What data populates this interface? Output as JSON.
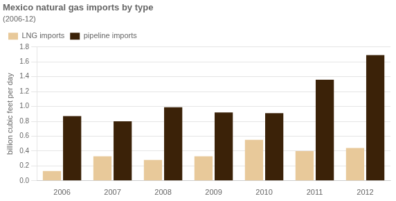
{
  "chart_data": {
    "type": "bar",
    "title": "Mexico natural gas imports by type",
    "subtitle": "(2006-12)",
    "ylabel": "billion cubic feet per day",
    "categories": [
      "2006",
      "2007",
      "2008",
      "2009",
      "2010",
      "2011",
      "2012"
    ],
    "series": [
      {
        "name": "LNG imports",
        "color": "#e8c99a",
        "values": [
          0.13,
          0.33,
          0.28,
          0.33,
          0.55,
          0.4,
          0.44
        ]
      },
      {
        "name": "pipeline imports",
        "color": "#3b2208",
        "values": [
          0.87,
          0.8,
          0.99,
          0.92,
          0.91,
          1.36,
          1.69
        ]
      }
    ],
    "ylim": [
      0,
      1.8
    ],
    "yticks": [
      {
        "value": 0,
        "label": "0.0"
      },
      0.2,
      0.4,
      0.6,
      0.8,
      {
        "value": 1,
        "label": "1.0"
      },
      1.2,
      1.4,
      1.6,
      1.8
    ],
    "grid": true,
    "legend": "upper left"
  }
}
